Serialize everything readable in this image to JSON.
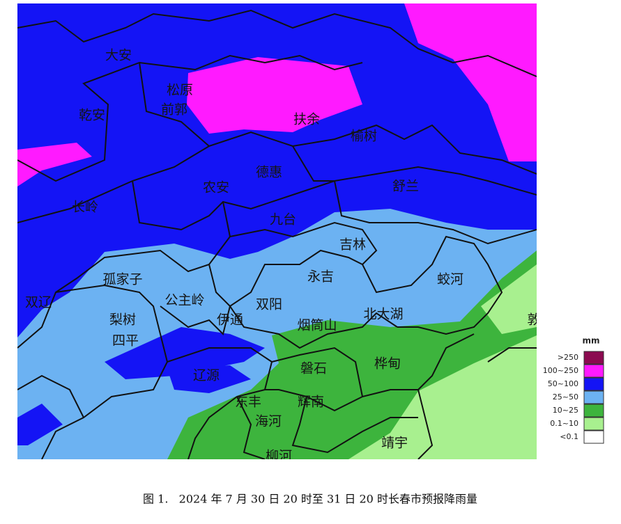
{
  "map": {
    "labels": [
      "大安",
      "松原",
      "前郭",
      "乾安",
      "扶余",
      "榆树",
      "德惠",
      "农安",
      "舒兰",
      "长岭",
      "九台",
      "吉林",
      "孤家子",
      "永吉",
      "蛟河",
      "双辽",
      "公主岭",
      "双阳",
      "梨树",
      "伊通",
      "北大湖",
      "烟筒山",
      "四平",
      "桦甸",
      "磐石",
      "辽源",
      "东丰",
      "辉南",
      "海河",
      "靖宇",
      "柳河",
      "敦"
    ]
  },
  "legend": {
    "unit": "mm",
    "items": [
      {
        "label": ">250",
        "color": "#8b0a50"
      },
      {
        "label": "100~250",
        "color": "#ff1aff"
      },
      {
        "label": "50~100",
        "color": "#1414f5"
      },
      {
        "label": "25~50",
        "color": "#6cb2f2"
      },
      {
        "label": "10~25",
        "color": "#3db43d"
      },
      {
        "label": "0.1~10",
        "color": "#a8f08f"
      },
      {
        "label": "<0.1",
        "color": "#ffffff"
      }
    ]
  },
  "caption": "图 1.   2024 年 7 月 30 日 20 时至 31 日 20 时长春市预报降雨量"
}
